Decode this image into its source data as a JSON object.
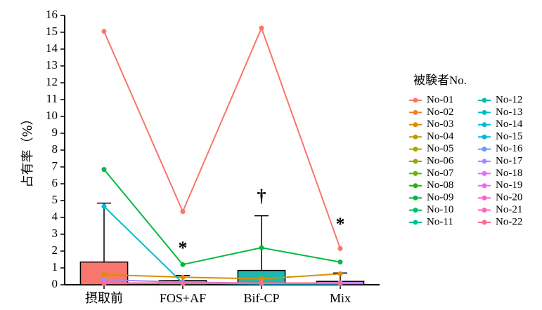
{
  "chart_data": {
    "type": "bar",
    "y_label": "占有率（%）",
    "categories": [
      "摂取前",
      "FOS+AF",
      "Bif-CP",
      "Mix"
    ],
    "ylim": [
      0,
      16
    ],
    "yticks": [
      0,
      1,
      2,
      3,
      4,
      5,
      6,
      7,
      8,
      9,
      10,
      11,
      12,
      13,
      14,
      15,
      16
    ],
    "bars": {
      "values": [
        1.35,
        0.25,
        0.85,
        0.2
      ],
      "errors": [
        3.5,
        0.3,
        3.25,
        0.5
      ],
      "colors": [
        "#F8766D",
        "#A89A6A",
        "#1FB8B0",
        "#C77CFF"
      ]
    },
    "annotations": [
      "*",
      "†",
      "*"
    ],
    "legend_title": "被験者No.",
    "series": [
      {
        "name": "No-01",
        "color": "#F8766D",
        "values": [
          15.05,
          4.35,
          15.25,
          2.15
        ]
      },
      {
        "name": "No-02",
        "color": "#EC8239",
        "values": [
          0.1,
          0.1,
          0.1,
          0.1
        ]
      },
      {
        "name": "No-03",
        "color": "#DB8E00",
        "values": [
          0.6,
          0.45,
          0.35,
          0.65
        ]
      },
      {
        "name": "No-04",
        "color": "#C79800",
        "values": [
          0.1,
          0.1,
          0.1,
          0.1
        ]
      },
      {
        "name": "No-05",
        "color": "#AFA100",
        "values": [
          0.1,
          0.1,
          0.1,
          0.1
        ]
      },
      {
        "name": "No-06",
        "color": "#93AA00",
        "values": [
          0.1,
          0.1,
          0.1,
          0.1
        ]
      },
      {
        "name": "No-07",
        "color": "#6FB000",
        "values": [
          0.1,
          0.1,
          0.1,
          0.1
        ]
      },
      {
        "name": "No-08",
        "color": "#27B500",
        "values": [
          0.1,
          0.1,
          0.1,
          0.1
        ]
      },
      {
        "name": "No-09",
        "color": "#00BA42",
        "values": [
          6.85,
          1.2,
          2.2,
          1.35
        ]
      },
      {
        "name": "No-10",
        "color": "#00BE6C",
        "values": [
          0.1,
          0.1,
          0.1,
          0.1
        ]
      },
      {
        "name": "No-11",
        "color": "#00C08E",
        "values": [
          0.1,
          0.1,
          0.1,
          0.1
        ]
      },
      {
        "name": "No-12",
        "color": "#00C1AB",
        "values": [
          0.1,
          0.1,
          0.1,
          0.1
        ]
      },
      {
        "name": "No-13",
        "color": "#00BFC4",
        "values": [
          0.1,
          0.1,
          0.1,
          0.1
        ]
      },
      {
        "name": "No-14",
        "color": "#00BBDB",
        "values": [
          4.65,
          0.1,
          0.05,
          0.05
        ]
      },
      {
        "name": "No-15",
        "color": "#00B4EF",
        "values": [
          0.1,
          0.1,
          0.1,
          0.1
        ]
      },
      {
        "name": "No-16",
        "color": "#619CFF",
        "values": [
          0.1,
          0.1,
          0.1,
          0.1
        ]
      },
      {
        "name": "No-17",
        "color": "#A58AFF",
        "values": [
          0.3,
          0.15,
          0.1,
          0.1
        ]
      },
      {
        "name": "No-18",
        "color": "#DB72FB",
        "values": [
          0.1,
          0.1,
          0.1,
          0.1
        ]
      },
      {
        "name": "No-19",
        "color": "#EF67EB",
        "values": [
          0.1,
          0.1,
          0.1,
          0.1
        ]
      },
      {
        "name": "No-20",
        "color": "#FA62D3",
        "values": [
          0.1,
          0.1,
          0.1,
          0.1
        ]
      },
      {
        "name": "No-21",
        "color": "#FF62BC",
        "values": [
          0.1,
          0.1,
          0.1,
          0.1
        ]
      },
      {
        "name": "No-22",
        "color": "#FF6C91",
        "values": [
          0.1,
          0.1,
          0.1,
          0.1
        ]
      }
    ]
  }
}
